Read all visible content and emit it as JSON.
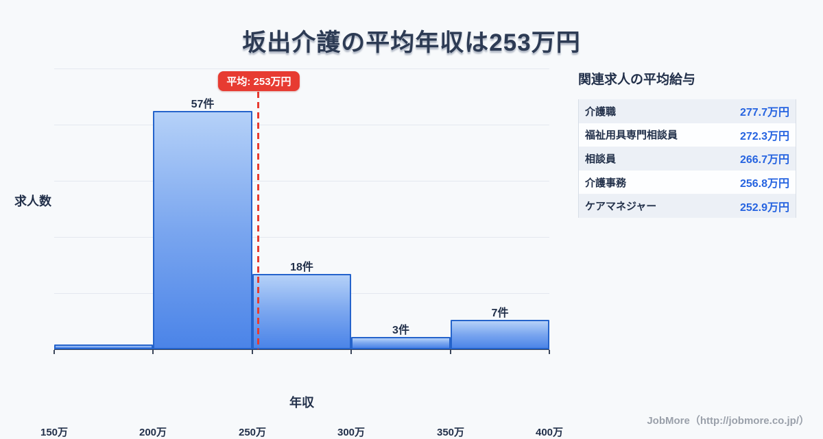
{
  "page": {
    "title": "坂出介護の平均年収は253万円",
    "footer_credit": "JobMore（http://jobmore.co.jp/）",
    "colors": {
      "background": "#f7f9fb",
      "bar_fill_top": "#b5d1f8",
      "bar_fill_bottom": "#4b84e8",
      "bar_border": "#2463cb",
      "average_red": "#e73b31",
      "value_blue": "#2563e0",
      "text_navy": "#22304a",
      "gridline": "#e4e8ef"
    }
  },
  "chart_data": {
    "type": "bar",
    "title": "坂出介護の平均年収は253万円",
    "xlabel": "年収",
    "ylabel": "求人数",
    "x_tick_labels": [
      "150万",
      "200万",
      "250万",
      "300万",
      "350万",
      "400万"
    ],
    "x_range_man_yen": [
      150,
      400
    ],
    "bin_width_man_yen": 50,
    "bins": [
      {
        "range": "150万-200万",
        "count": 1,
        "label": ""
      },
      {
        "range": "200万-250万",
        "count": 57,
        "label": "57件"
      },
      {
        "range": "250万-300万",
        "count": 18,
        "label": "18件"
      },
      {
        "range": "300万-350万",
        "count": 3,
        "label": "3件"
      },
      {
        "range": "350万-400万",
        "count": 7,
        "label": "7件"
      }
    ],
    "average": {
      "value_man_yen": 253,
      "badge_label": "平均: 253万円"
    },
    "ylim": [
      0,
      67
    ],
    "gridline_count": 5,
    "grid": true,
    "legend": null
  },
  "related_jobs_panel": {
    "heading": "関連求人の平均給与",
    "rows": [
      {
        "label": "介護職",
        "value": "277.7万円"
      },
      {
        "label": "福祉用具専門相談員",
        "value": "272.3万円"
      },
      {
        "label": "相談員",
        "value": "266.7万円"
      },
      {
        "label": "介護事務",
        "value": "256.8万円"
      },
      {
        "label": "ケアマネジャー",
        "value": "252.9万円"
      }
    ]
  }
}
